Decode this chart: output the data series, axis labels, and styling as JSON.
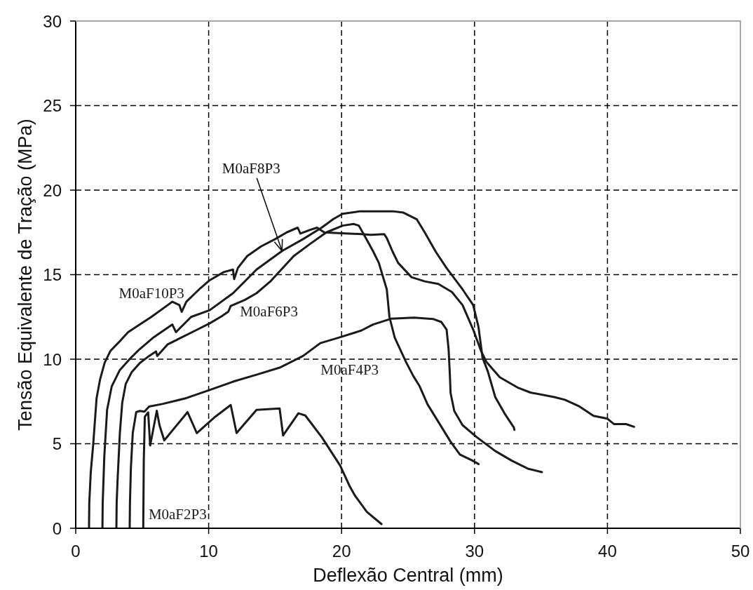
{
  "chart_data": {
    "type": "line",
    "xlabel": "Deflexão Central (mm)",
    "ylabel": "Tensão Equivalente de Tração (MPa)",
    "xlim": [
      0,
      50
    ],
    "xticks": [
      0,
      10,
      20,
      30,
      40,
      50
    ],
    "ylim": [
      0,
      30
    ],
    "yticks": [
      0,
      5,
      10,
      15,
      20,
      25,
      30
    ],
    "grid": true,
    "marker": "none",
    "line_style": "solid",
    "annotations": [
      {
        "text": "M0aF8P3",
        "x": 15.52,
        "y": 16.4
      }
    ],
    "series": [
      {
        "name": "M0aF10P3",
        "color": "#1a1a1a",
        "x": [
          1.0,
          1.02,
          1.13,
          1.31,
          1.57,
          1.83,
          2.18,
          2.62,
          3.24,
          3.94,
          4.82,
          5.69,
          6.92,
          7.27,
          7.8,
          7.97,
          8.32,
          9.38,
          10.08,
          11.13,
          11.83,
          11.92,
          12.2,
          12.9,
          13.94,
          15.0,
          15.87,
          16.7,
          16.9,
          17.6,
          18.15,
          18.7,
          20.0,
          21.5,
          22.2,
          23.2,
          23.4,
          23.84,
          24.25,
          25.26,
          26.27,
          27.28,
          28.3,
          29.1,
          29.9,
          30.5,
          30.9,
          31.9,
          33.3,
          34.2,
          36.0,
          36.8,
          37.9,
          38.95,
          40.0,
          40.5,
          41.4,
          42.0
        ],
        "values": [
          0,
          1.5,
          3.3,
          4.9,
          7.7,
          8.8,
          9.8,
          10.5,
          11.0,
          11.6,
          12.05,
          12.5,
          13.2,
          13.4,
          13.2,
          12.8,
          13.4,
          14.2,
          14.67,
          15.15,
          15.3,
          14.74,
          15.4,
          16.1,
          16.67,
          17.1,
          17.5,
          17.78,
          17.43,
          17.64,
          17.78,
          17.5,
          17.45,
          17.4,
          17.35,
          17.4,
          17.16,
          16.36,
          15.7,
          14.85,
          14.6,
          14.45,
          13.97,
          13.2,
          11.75,
          10.47,
          9.83,
          8.93,
          8.3,
          8.03,
          7.76,
          7.6,
          7.2,
          6.65,
          6.48,
          6.16,
          6.16,
          6.0
        ]
      },
      {
        "color": "#1a1a1a",
        "x": [
          2.01,
          2.03,
          2.15,
          2.36,
          2.71,
          3.32,
          4.11,
          4.82,
          5.87,
          7.27,
          7.54,
          8.68,
          10.08,
          11.83,
          13.6,
          15.52,
          17.1,
          18.5,
          19.4,
          20.08,
          21.4,
          23.84,
          24.65,
          25.66,
          26.27,
          27.08,
          27.89,
          29.1,
          29.9,
          30.3,
          30.6,
          31.0,
          31.56,
          32.26,
          32.96,
          33.0
        ],
        "values": [
          0,
          1.5,
          4.25,
          7.0,
          8.4,
          9.36,
          10.05,
          10.6,
          11.3,
          12.05,
          11.6,
          12.5,
          12.9,
          13.9,
          15.3,
          16.4,
          17.1,
          17.78,
          18.3,
          18.6,
          18.75,
          18.75,
          18.67,
          18.27,
          17.48,
          16.36,
          15.4,
          14.13,
          13.2,
          11.9,
          10.1,
          9.28,
          7.76,
          6.79,
          5.96,
          5.82
        ]
      },
      {
        "name": "M0aF6P3",
        "color": "#1a1a1a",
        "x": [
          3.06,
          3.08,
          3.15,
          3.32,
          3.5,
          3.76,
          4.2,
          4.82,
          5.52,
          6.04,
          6.13,
          6.92,
          7.97,
          9.02,
          10.08,
          10.96,
          11.48,
          11.66,
          12.71,
          13.6,
          14.64,
          15.34,
          16.4,
          17.6,
          18.85,
          20.08,
          20.9,
          21.3,
          21.8,
          22.36,
          22.8,
          23.4,
          23.6,
          24.0,
          24.85,
          25.4,
          25.87,
          26.46,
          27.33,
          28.2,
          28.9,
          29.8,
          30.3
        ],
        "values": [
          0,
          1.5,
          2.87,
          5.63,
          7.43,
          8.53,
          9.22,
          9.77,
          10.19,
          10.46,
          10.19,
          10.88,
          11.29,
          11.7,
          12.12,
          12.53,
          12.81,
          13.15,
          13.5,
          13.9,
          14.6,
          15.2,
          16.1,
          16.8,
          17.5,
          17.9,
          18.0,
          17.9,
          17.2,
          16.4,
          15.7,
          14.13,
          12.5,
          11.27,
          9.83,
          9.0,
          8.4,
          7.34,
          6.23,
          5.12,
          4.36,
          4.02,
          3.8
        ]
      },
      {
        "name": "M0aF4P3",
        "color": "#1a1a1a",
        "x": [
          4.06,
          4.08,
          4.15,
          4.29,
          4.55,
          4.82,
          5.17,
          5.52,
          6.57,
          8.32,
          10.08,
          11.83,
          13.6,
          15.34,
          17.1,
          18.4,
          19.9,
          21.5,
          22.36,
          23.76,
          25.46,
          26.88,
          27.5,
          27.9,
          28.05,
          28.15,
          28.2,
          28.48,
          29.1,
          30.15,
          31.56,
          32.8,
          34.0,
          35.07
        ],
        "values": [
          0,
          1.5,
          3.56,
          5.63,
          6.87,
          6.94,
          6.9,
          7.2,
          7.36,
          7.7,
          8.18,
          8.67,
          9.08,
          9.5,
          10.19,
          10.95,
          11.3,
          11.7,
          12.05,
          12.4,
          12.46,
          12.38,
          12.2,
          11.75,
          10.6,
          9.0,
          8.0,
          6.93,
          6.1,
          5.4,
          4.57,
          4.0,
          3.53,
          3.32
        ]
      },
      {
        "name": "M0aF2P3",
        "color": "#1a1a1a",
        "x": [
          5.08,
          5.1,
          5.12,
          5.2,
          5.45,
          5.6,
          6.1,
          6.3,
          6.66,
          7.5,
          8.41,
          9.11,
          10.5,
          11.66,
          12.1,
          13.6,
          15.34,
          15.6,
          16.75,
          17.27,
          18.5,
          19.9,
          20.6,
          21.0,
          21.9,
          23.0
        ],
        "values": [
          0,
          2.0,
          4.0,
          6.6,
          6.85,
          4.9,
          6.95,
          6.1,
          5.2,
          6.0,
          6.87,
          5.63,
          6.6,
          7.29,
          5.63,
          7.0,
          7.08,
          5.49,
          6.8,
          6.67,
          5.4,
          3.7,
          2.5,
          1.94,
          0.97,
          0.25
        ]
      }
    ]
  }
}
